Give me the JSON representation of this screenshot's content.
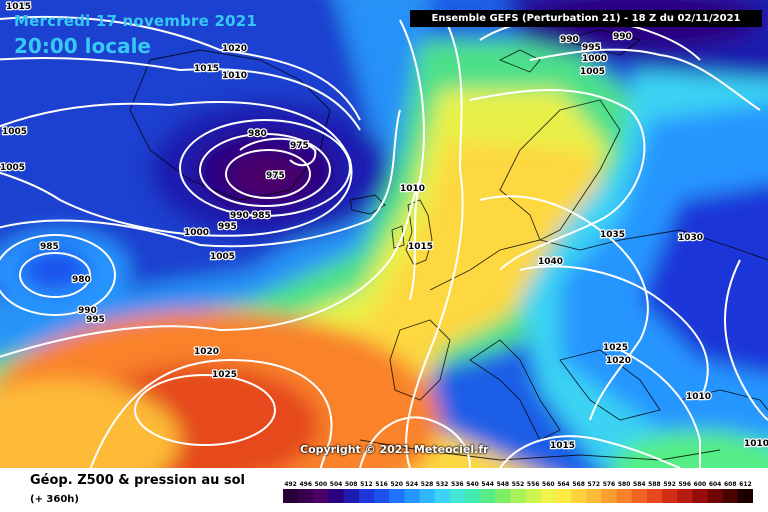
{
  "header": {
    "date": "Mercredi 17 novembre 2021",
    "time": "20:00 locale",
    "run": "Ensemble GEFS  (Perturbation 21)  -  18 Z du 02/11/2021"
  },
  "copyright": "Copyright © 2021 Meteociel.fr",
  "legend": {
    "title": "Géop. Z500 & pression au sol",
    "subtitle": "(+ 360h)",
    "scale_values": [
      "492",
      "496",
      "500",
      "504",
      "508",
      "512",
      "516",
      "520",
      "524",
      "528",
      "532",
      "536",
      "540",
      "544",
      "548",
      "552",
      "556",
      "560",
      "564",
      "568",
      "572",
      "576",
      "580",
      "584",
      "588",
      "592",
      "596",
      "600",
      "604",
      "608",
      "612"
    ],
    "scale_colors": [
      "#2a0038",
      "#3a0050",
      "#4b0068",
      "#2a0080",
      "#1b1bb0",
      "#1f36d8",
      "#1e52ee",
      "#1e74ff",
      "#2596ff",
      "#2fb6ff",
      "#3ad3f3",
      "#43e5d5",
      "#44ebb0",
      "#55ee86",
      "#7cf062",
      "#a6f257",
      "#cdf44f",
      "#eff34b",
      "#fdea45",
      "#fdd23e",
      "#fdbb38",
      "#fc9e2f",
      "#f9822a",
      "#f26424",
      "#e5481d",
      "#d22e16",
      "#b71a10",
      "#950c0a",
      "#6f0505",
      "#480202",
      "#1c0000"
    ]
  },
  "isobar_labels": [
    "1015",
    "1020",
    "1015",
    "1010",
    "1005",
    "1005",
    "980",
    "975",
    "975",
    "990",
    "985",
    "995",
    "1000",
    "1005",
    "985",
    "980",
    "990",
    "995",
    "1020",
    "1025",
    "1010",
    "1015",
    "990",
    "990",
    "995",
    "1000",
    "1005",
    "1040",
    "1035",
    "1030",
    "1025",
    "1020",
    "1010",
    "1015",
    "1010"
  ]
}
